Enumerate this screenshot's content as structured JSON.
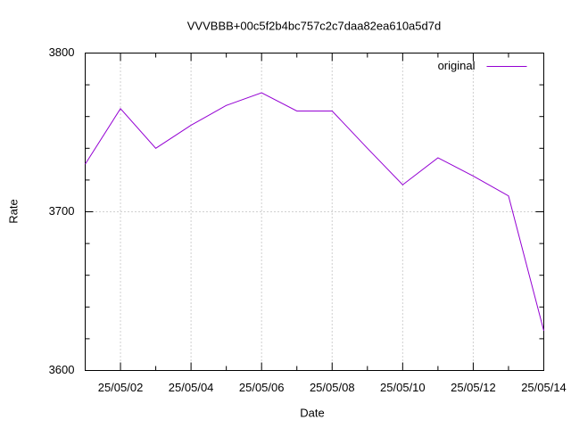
{
  "chart_data": {
    "type": "line",
    "title": "VVVBBB+00c5f2b4bc757c2c7daa82ea610a5d7d",
    "x_label": "Date",
    "y_label": "Rate",
    "categories": [
      null,
      "25/05/02",
      null,
      "25/05/04",
      null,
      "25/05/06",
      null,
      "25/05/08",
      null,
      "25/05/10",
      null,
      "25/05/12",
      null,
      "25/05/14"
    ],
    "series": [
      {
        "name": "original",
        "color": "#9400d3",
        "values": [
          3730,
          3765,
          3740,
          3754.5,
          3767,
          3775,
          3763.5,
          3763.5,
          3740,
          3717,
          3734,
          3722.5,
          3710,
          3625
        ]
      }
    ],
    "ylim": [
      3600,
      3800
    ],
    "yticks": [
      3600,
      3700,
      3800
    ],
    "grid": true,
    "legend": "top-right"
  }
}
